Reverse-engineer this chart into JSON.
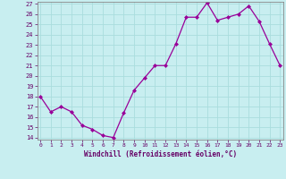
{
  "x": [
    0,
    1,
    2,
    3,
    4,
    5,
    6,
    7,
    8,
    9,
    10,
    11,
    12,
    13,
    14,
    15,
    16,
    17,
    18,
    19,
    20,
    21,
    22,
    23
  ],
  "y": [
    18,
    16.5,
    17,
    16.5,
    15.2,
    14.8,
    14.2,
    14,
    16.4,
    18.6,
    19.8,
    21,
    21,
    23.1,
    25.7,
    25.7,
    27.1,
    25.4,
    25.7,
    26.0,
    26.8,
    25.3,
    23.1,
    21.0
  ],
  "xlabel": "Windchill (Refroidissement éolien,°C)",
  "ylim": [
    14,
    27
  ],
  "xlim": [
    0,
    23
  ],
  "yticks": [
    14,
    15,
    16,
    17,
    18,
    19,
    20,
    21,
    22,
    23,
    24,
    25,
    26,
    27
  ],
  "xticks": [
    0,
    1,
    2,
    3,
    4,
    5,
    6,
    7,
    8,
    9,
    10,
    11,
    12,
    13,
    14,
    15,
    16,
    17,
    18,
    19,
    20,
    21,
    22,
    23
  ],
  "line_color": "#990099",
  "marker_color": "#990099",
  "bg_color": "#c8eef0",
  "grid_color": "#aadddd",
  "label_color": "#660066",
  "tick_color": "#660066",
  "spine_color": "#888888"
}
